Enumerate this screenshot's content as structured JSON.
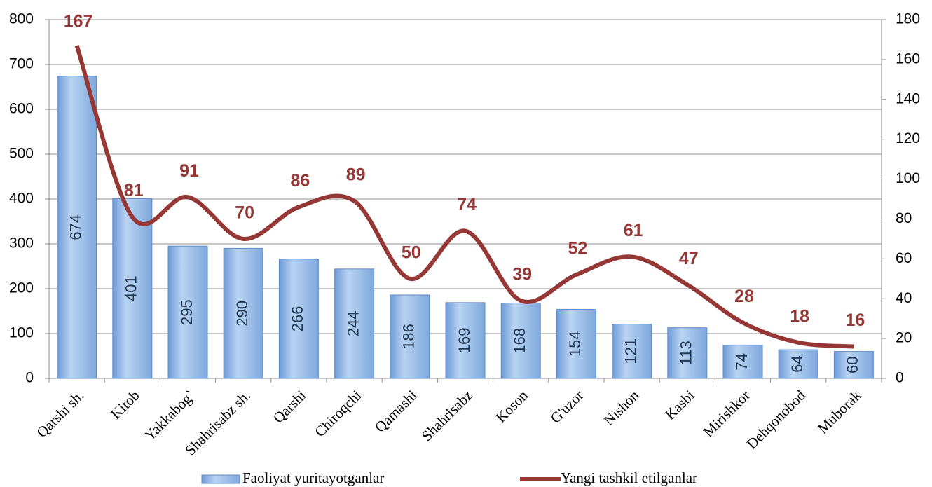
{
  "chart_data": {
    "type": "bar_line",
    "categories": [
      "Qarshi sh.",
      "Kitob",
      "Yakkabog`",
      "Shahrisabz sh.",
      "Qarshi",
      "Chiroqchi",
      "Qamashi",
      "Shahrisabz",
      "Koson",
      "G'uzor",
      "Nishon",
      "Kasbi",
      "Mirishkor",
      "Dehqonobod",
      "Muborak"
    ],
    "series": [
      {
        "name": "Faoliyat yuritayotganlar",
        "type": "bar",
        "color": "#8db4e2",
        "values": [
          674,
          401,
          295,
          290,
          266,
          244,
          186,
          169,
          168,
          154,
          121,
          113,
          74,
          64,
          60
        ]
      },
      {
        "name": "Yangi tashkil etilganlar",
        "type": "line",
        "axis": "y2",
        "color": "#953735",
        "values": [
          167,
          81,
          91,
          70,
          86,
          89,
          50,
          74,
          39,
          52,
          61,
          47,
          28,
          18,
          16
        ]
      }
    ],
    "ylim": [
      0,
      800
    ],
    "yticks": [
      0,
      100,
      200,
      300,
      400,
      500,
      600,
      700,
      800
    ],
    "y2lim": [
      0,
      180
    ],
    "y2ticks": [
      0,
      20,
      40,
      60,
      80,
      100,
      120,
      140,
      160,
      180
    ],
    "grid": true,
    "legend": "bottom"
  }
}
